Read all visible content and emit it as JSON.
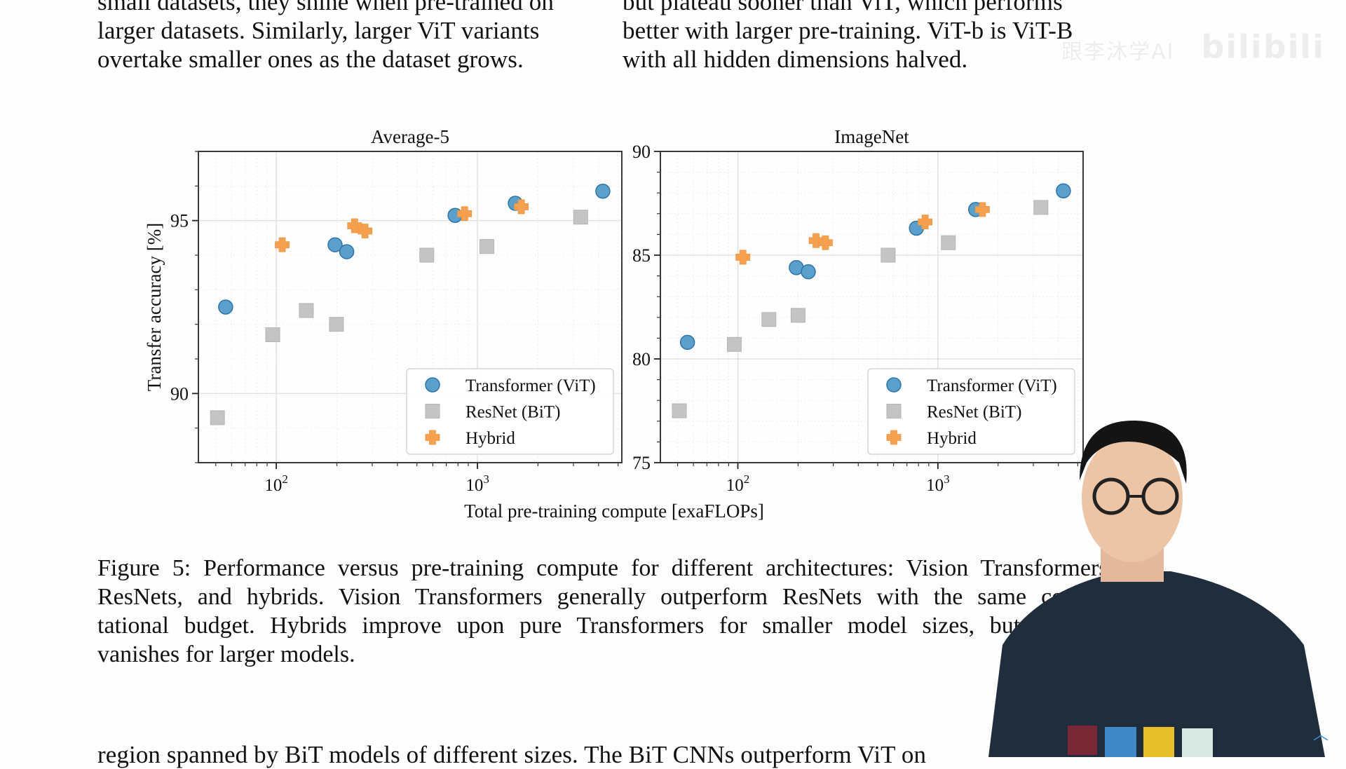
{
  "page": {
    "top_left_lines": [
      "small datasets, they shine when pre-trained on",
      "larger datasets.  Similarly, larger ViT variants",
      "overtake smaller ones as the dataset grows."
    ],
    "top_right_lines": [
      "but plateau sooner than ViT, which performs",
      "better with larger pre-training.  ViT-b is ViT-B",
      "with all hidden dimensions halved."
    ],
    "caption_lines": [
      "Figure 5: Performance versus pre-training compute for different architectures: Vision Transformers,",
      "ResNets, and hybrids.  Vision Transformers generally outperform ResNets with the same compu-",
      "tational budget.  Hybrids improve upon pure Transformers for smaller model sizes, but the gap",
      "vanishes for larger models."
    ],
    "bottom_line": "region spanned by BiT models of different sizes. The BiT CNNs outperform ViT on",
    "watermark": {
      "channel": "跟李沐学AI",
      "brand": "bilibili"
    },
    "scroll_top_icon": "chevron-up-icon"
  },
  "colors": {
    "vit": "#5b9fcb",
    "vit_edge": "#2e74a8",
    "bit": "#c4c4c4",
    "hybrid": "#f4a04e",
    "grid": "#e2e2e2"
  },
  "chart_data": [
    {
      "type": "scatter",
      "title": "Average-5",
      "xlabel": "Total pre-training compute [exaFLOPs]",
      "ylabel": "Transfer accuracy [%]",
      "xscale": "log",
      "xlim": [
        41,
        5220
      ],
      "ylim": [
        88,
        97
      ],
      "xticks": [
        {
          "value": 100,
          "label": "10",
          "exp": "2"
        },
        {
          "value": 1000,
          "label": "10",
          "exp": "3"
        }
      ],
      "yticks": [
        90,
        95
      ],
      "grid": true,
      "legend": "bottom-right",
      "legend_entries": [
        "Transformer (ViT)",
        "ResNet (BiT)",
        "Hybrid"
      ],
      "series": [
        {
          "name": "Transformer (ViT)",
          "marker": "circle",
          "x": [
            56,
            196,
            224,
            774,
            1542,
            4200
          ],
          "y": [
            92.5,
            94.3,
            94.1,
            95.15,
            95.5,
            95.85
          ]
        },
        {
          "name": "ResNet (BiT)",
          "marker": "square",
          "x": [
            51,
            96,
            141,
            199,
            560,
            1114,
            3260
          ],
          "y": [
            89.3,
            91.7,
            92.4,
            92.0,
            94.0,
            94.25,
            95.1
          ]
        },
        {
          "name": "Hybrid",
          "marker": "plus",
          "x": [
            107,
            245,
            276,
            863,
            1652
          ],
          "y": [
            94.3,
            94.85,
            94.7,
            95.2,
            95.4
          ]
        }
      ]
    },
    {
      "type": "scatter",
      "title": "ImageNet",
      "xlabel": "Total pre-training compute [exaFLOPs]",
      "ylabel": "",
      "xscale": "log",
      "xlim": [
        41,
        5320
      ],
      "ylim": [
        75,
        90
      ],
      "xticks": [
        {
          "value": 100,
          "label": "10",
          "exp": "2"
        },
        {
          "value": 1000,
          "label": "10",
          "exp": "3"
        }
      ],
      "yticks": [
        75,
        80,
        85,
        90
      ],
      "grid": true,
      "legend": "bottom-right",
      "legend_entries": [
        "Transformer (ViT)",
        "ResNet (BiT)",
        "Hybrid"
      ],
      "series": [
        {
          "name": "Transformer (ViT)",
          "marker": "circle",
          "x": [
            56,
            196,
            225,
            781,
            1545,
            4240
          ],
          "y": [
            80.8,
            84.4,
            84.2,
            86.3,
            87.2,
            88.1
          ]
        },
        {
          "name": "ResNet (BiT)",
          "marker": "square",
          "x": [
            51,
            96,
            143,
            200,
            564,
            1128,
            3274
          ],
          "y": [
            77.5,
            80.7,
            81.9,
            82.1,
            85.0,
            85.6,
            87.3
          ]
        },
        {
          "name": "Hybrid",
          "marker": "plus",
          "x": [
            106,
            246,
            274,
            863,
            1670
          ],
          "y": [
            84.9,
            85.7,
            85.6,
            86.6,
            87.2
          ]
        }
      ]
    }
  ],
  "shared_xlabel": "Total pre-training compute [exaFLOPs]"
}
